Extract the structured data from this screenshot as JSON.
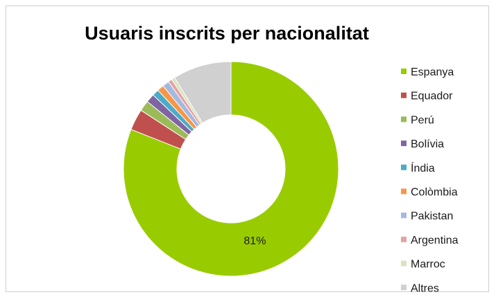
{
  "chart_data": {
    "type": "pie",
    "variant": "doughnut",
    "title": "Usuaris inscrits per nacionalitat",
    "legend_position": "right",
    "slices": [
      {
        "label": "Espanya",
        "value": 81,
        "color": "#99cc00",
        "data_label": "81%"
      },
      {
        "label": "Equador",
        "value": 3.2,
        "color": "#c0504d"
      },
      {
        "label": "Perú",
        "value": 1.6,
        "color": "#9bbb59"
      },
      {
        "label": "Bolívia",
        "value": 1.3,
        "color": "#8064a2"
      },
      {
        "label": "Índia",
        "value": 1.0,
        "color": "#4bacc6"
      },
      {
        "label": "Colòmbia",
        "value": 1.0,
        "color": "#f79646"
      },
      {
        "label": "Pakistan",
        "value": 1.0,
        "color": "#a5b9df"
      },
      {
        "label": "Argentina",
        "value": 0.6,
        "color": "#e6a3a6"
      },
      {
        "label": "Marroc",
        "value": 0.5,
        "color": "#d7e4bd"
      },
      {
        "label": "Altres",
        "value": 8.8,
        "color": "#d0d0d0"
      }
    ]
  }
}
